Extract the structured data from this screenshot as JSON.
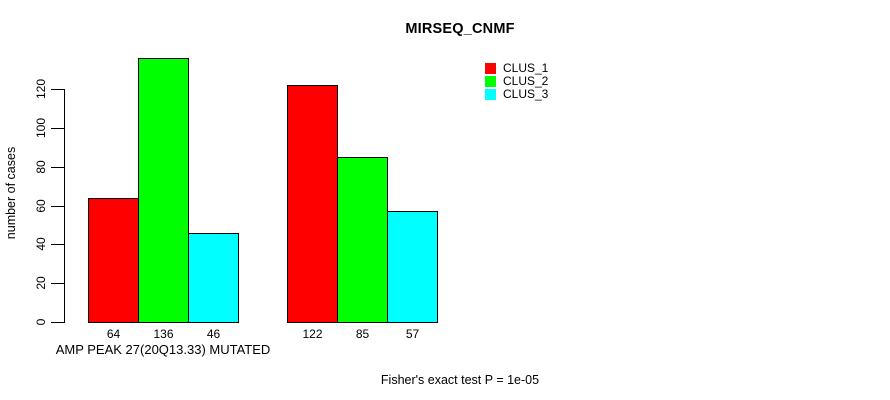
{
  "chart_data": {
    "type": "bar",
    "title": "MIRSEQ_CNMF",
    "ylabel": "number of cases",
    "xlabel": "AMP PEAK 27(20Q13.33) MUTATED",
    "footer": "Fisher's exact test P = 1e-05",
    "yticks": [
      0,
      20,
      40,
      60,
      80,
      100,
      120
    ],
    "ylim": [
      0,
      140
    ],
    "n_groups": 2,
    "grid": false,
    "legend_position": "top-right",
    "series": [
      {
        "name": "CLUS_1",
        "color": "#FF0000",
        "values": [
          64,
          122
        ]
      },
      {
        "name": "CLUS_2",
        "color": "#00FF00",
        "values": [
          136,
          85
        ]
      },
      {
        "name": "CLUS_3",
        "color": "#00FFFF",
        "values": [
          46,
          57
        ]
      }
    ]
  }
}
